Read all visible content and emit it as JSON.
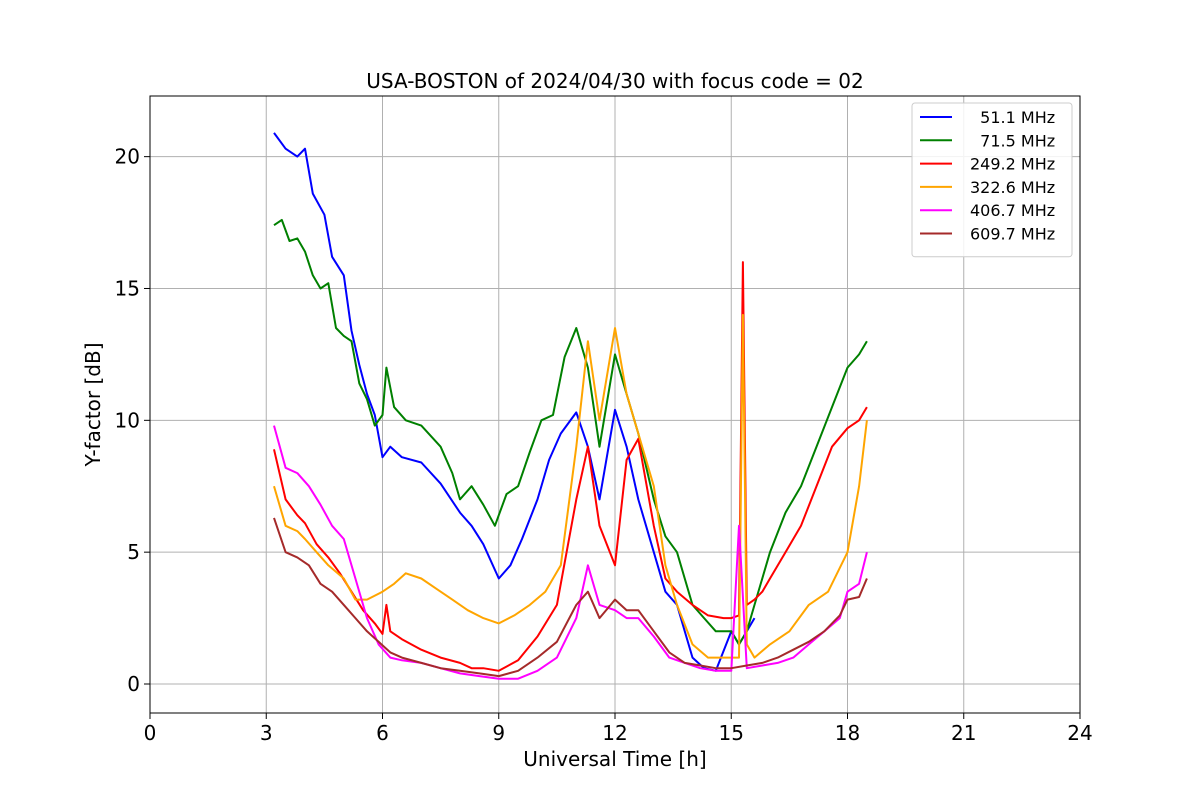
{
  "chart_data": {
    "type": "line",
    "title": "USA-BOSTON of 2024/04/30 with focus code = 02",
    "xlabel": "Universal Time [h]",
    "ylabel": "Y-factor [dB]",
    "xlim": [
      0,
      24
    ],
    "ylim": [
      -1.1,
      22.3
    ],
    "xticks": [
      0,
      3,
      6,
      9,
      12,
      15,
      18,
      21,
      24
    ],
    "yticks": [
      0,
      5,
      10,
      15,
      20
    ],
    "grid": true,
    "legend_position": "top-right",
    "series": [
      {
        "name": "  51.1 MHz",
        "color": "#0000ff",
        "x": [
          3.2,
          3.5,
          3.8,
          4.0,
          4.2,
          4.5,
          4.7,
          5.0,
          5.2,
          5.4,
          5.6,
          5.8,
          6.0,
          6.2,
          6.5,
          7.0,
          7.5,
          8.0,
          8.3,
          8.6,
          9.0,
          9.3,
          9.6,
          10.0,
          10.3,
          10.6,
          11.0,
          11.3,
          11.6,
          12.0,
          12.3,
          12.6,
          13.0,
          13.3,
          13.6,
          14.0,
          14.3,
          14.6,
          15.0,
          15.2,
          15.4,
          15.6
        ],
        "y": [
          20.9,
          20.3,
          20.0,
          20.3,
          18.6,
          17.8,
          16.2,
          15.5,
          13.4,
          12.1,
          11.0,
          10.2,
          8.6,
          9.0,
          8.6,
          8.4,
          7.6,
          6.5,
          6.0,
          5.3,
          4.0,
          4.5,
          5.5,
          7.0,
          8.5,
          9.5,
          10.3,
          9.0,
          7.0,
          10.4,
          9.0,
          7.0,
          5.0,
          3.5,
          3.0,
          1.0,
          0.6,
          0.5,
          2.0,
          1.5,
          2.0,
          2.5
        ]
      },
      {
        "name": "  71.5 MHz",
        "color": "#008000",
        "x": [
          3.2,
          3.4,
          3.6,
          3.8,
          4.0,
          4.2,
          4.4,
          4.6,
          4.8,
          5.0,
          5.2,
          5.4,
          5.6,
          5.8,
          6.0,
          6.1,
          6.3,
          6.6,
          7.0,
          7.5,
          7.8,
          8.0,
          8.3,
          8.6,
          8.9,
          9.2,
          9.5,
          9.8,
          10.1,
          10.4,
          10.7,
          11.0,
          11.3,
          11.6,
          12.0,
          12.3,
          12.6,
          13.0,
          13.3,
          13.6,
          14.0,
          14.3,
          14.6,
          15.0,
          15.2,
          15.4,
          15.6,
          16.0,
          16.4,
          16.8,
          17.2,
          17.6,
          18.0,
          18.3,
          18.5
        ],
        "y": [
          17.4,
          17.6,
          16.8,
          16.9,
          16.4,
          15.5,
          15.0,
          15.2,
          13.5,
          13.2,
          13.0,
          11.4,
          10.8,
          9.8,
          10.2,
          12.0,
          10.5,
          10.0,
          9.8,
          9.0,
          8.0,
          7.0,
          7.5,
          6.8,
          6.0,
          7.2,
          7.5,
          8.8,
          10.0,
          10.2,
          12.4,
          13.5,
          12.0,
          9.0,
          12.5,
          11.0,
          9.5,
          7.0,
          5.6,
          5.0,
          3.0,
          2.5,
          2.0,
          2.0,
          1.5,
          2.0,
          3.0,
          5.0,
          6.5,
          7.5,
          9.0,
          10.5,
          12.0,
          12.5,
          13.0
        ]
      },
      {
        "name": "249.2 MHz",
        "color": "#ff0000",
        "x": [
          3.2,
          3.5,
          3.8,
          4.0,
          4.3,
          4.6,
          4.9,
          5.2,
          5.5,
          5.8,
          6.0,
          6.1,
          6.2,
          6.5,
          7.0,
          7.5,
          8.0,
          8.3,
          8.6,
          9.0,
          9.5,
          10.0,
          10.5,
          11.0,
          11.3,
          11.6,
          12.0,
          12.3,
          12.6,
          13.0,
          13.3,
          13.6,
          14.0,
          14.4,
          14.8,
          15.0,
          15.2,
          15.3,
          15.4,
          15.6,
          15.8,
          16.0,
          16.4,
          16.8,
          17.2,
          17.6,
          18.0,
          18.3,
          18.5
        ],
        "y": [
          8.9,
          7.0,
          6.4,
          6.1,
          5.3,
          4.8,
          4.2,
          3.5,
          2.8,
          2.3,
          1.9,
          3.0,
          2.0,
          1.7,
          1.3,
          1.0,
          0.8,
          0.6,
          0.6,
          0.5,
          0.9,
          1.8,
          3.0,
          7.0,
          9.0,
          6.0,
          4.5,
          8.5,
          9.3,
          6.0,
          4.0,
          3.5,
          3.0,
          2.6,
          2.5,
          2.5,
          2.6,
          16.0,
          3.0,
          3.2,
          3.5,
          4.0,
          5.0,
          6.0,
          7.5,
          9.0,
          9.7,
          10.0,
          10.5
        ]
      },
      {
        "name": "322.6 MHz",
        "color": "#ffa500",
        "x": [
          3.2,
          3.5,
          3.8,
          4.0,
          4.3,
          4.6,
          5.0,
          5.3,
          5.6,
          6.0,
          6.3,
          6.6,
          7.0,
          7.4,
          7.8,
          8.2,
          8.6,
          9.0,
          9.4,
          9.8,
          10.2,
          10.6,
          11.0,
          11.3,
          11.6,
          12.0,
          12.3,
          12.6,
          13.0,
          13.3,
          13.6,
          14.0,
          14.4,
          14.8,
          15.2,
          15.3,
          15.4,
          15.6,
          16.0,
          16.5,
          17.0,
          17.5,
          18.0,
          18.3,
          18.5
        ],
        "y": [
          7.5,
          6.0,
          5.8,
          5.5,
          5.0,
          4.5,
          4.0,
          3.2,
          3.2,
          3.5,
          3.8,
          4.2,
          4.0,
          3.6,
          3.2,
          2.8,
          2.5,
          2.3,
          2.6,
          3.0,
          3.5,
          4.5,
          9.0,
          13.0,
          10.0,
          13.5,
          11.0,
          9.5,
          7.5,
          4.5,
          3.0,
          1.5,
          1.0,
          1.0,
          1.0,
          14.0,
          1.5,
          1.0,
          1.5,
          2.0,
          3.0,
          3.5,
          5.0,
          7.5,
          10.0
        ]
      },
      {
        "name": "406.7 MHz",
        "color": "#ff00ff",
        "x": [
          3.2,
          3.5,
          3.8,
          4.1,
          4.4,
          4.7,
          5.0,
          5.3,
          5.6,
          5.9,
          6.2,
          6.5,
          7.0,
          7.5,
          8.0,
          8.5,
          9.0,
          9.5,
          10.0,
          10.5,
          11.0,
          11.3,
          11.6,
          12.0,
          12.3,
          12.6,
          13.0,
          13.4,
          13.8,
          14.2,
          14.6,
          15.0,
          15.2,
          15.4,
          15.8,
          16.2,
          16.6,
          17.0,
          17.4,
          17.8,
          18.0,
          18.3,
          18.5
        ],
        "y": [
          9.8,
          8.2,
          8.0,
          7.5,
          6.8,
          6.0,
          5.5,
          4.0,
          2.5,
          1.5,
          1.0,
          0.9,
          0.8,
          0.6,
          0.4,
          0.3,
          0.2,
          0.2,
          0.5,
          1.0,
          2.5,
          4.5,
          3.0,
          2.8,
          2.5,
          2.5,
          1.8,
          1.0,
          0.8,
          0.6,
          0.5,
          0.5,
          6.0,
          0.6,
          0.7,
          0.8,
          1.0,
          1.5,
          2.0,
          2.5,
          3.5,
          3.8,
          5.0
        ]
      },
      {
        "name": "609.7 MHz",
        "color": "#a52a2a",
        "x": [
          3.2,
          3.5,
          3.8,
          4.1,
          4.4,
          4.7,
          5.0,
          5.3,
          5.6,
          5.9,
          6.2,
          6.5,
          7.0,
          7.5,
          8.0,
          8.5,
          9.0,
          9.5,
          10.0,
          10.5,
          11.0,
          11.3,
          11.6,
          12.0,
          12.3,
          12.6,
          13.0,
          13.4,
          13.8,
          14.2,
          14.6,
          15.0,
          15.4,
          15.8,
          16.2,
          16.6,
          17.0,
          17.4,
          17.8,
          18.0,
          18.3,
          18.5
        ],
        "y": [
          6.3,
          5.0,
          4.8,
          4.5,
          3.8,
          3.5,
          3.0,
          2.5,
          2.0,
          1.6,
          1.2,
          1.0,
          0.8,
          0.6,
          0.5,
          0.4,
          0.3,
          0.5,
          1.0,
          1.6,
          3.0,
          3.5,
          2.5,
          3.2,
          2.8,
          2.8,
          2.0,
          1.2,
          0.8,
          0.7,
          0.6,
          0.6,
          0.7,
          0.8,
          1.0,
          1.3,
          1.6,
          2.0,
          2.6,
          3.2,
          3.3,
          4.0
        ]
      }
    ]
  }
}
